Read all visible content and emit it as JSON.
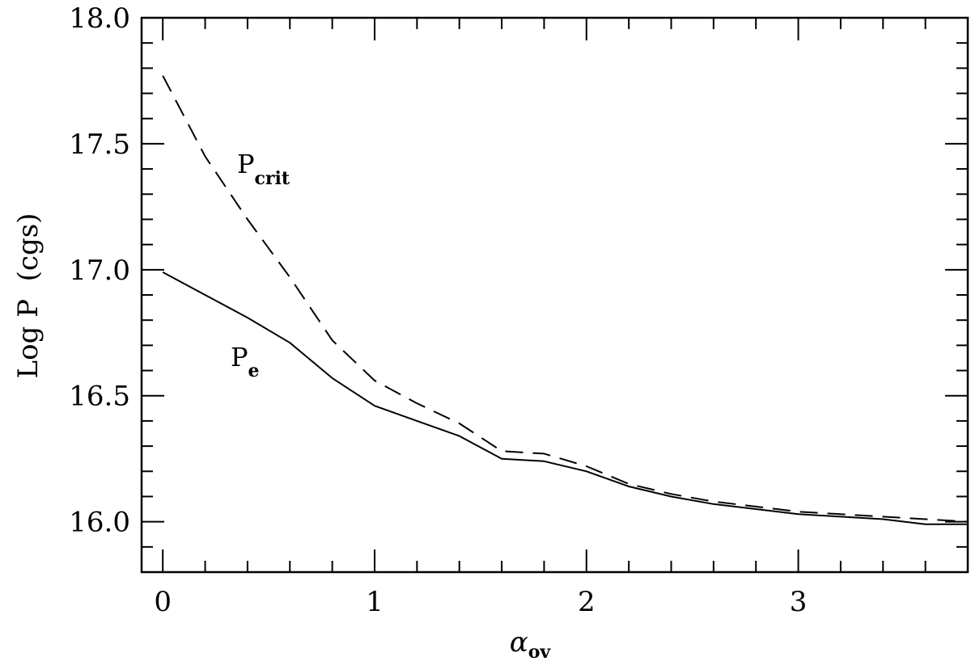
{
  "chart_data": {
    "type": "line",
    "xlabel": "α",
    "xlabel_sub": "ov",
    "ylabel": "Log P  (cgs)",
    "xlim": [
      -0.1,
      3.8
    ],
    "ylim": [
      15.8,
      18.0
    ],
    "xticks": [
      0,
      1,
      2,
      3
    ],
    "xtick_labels": [
      "0",
      "1",
      "2",
      "3"
    ],
    "yticks": [
      16.0,
      16.5,
      17.0,
      17.5,
      18.0
    ],
    "ytick_labels": [
      "16.0",
      "16.5",
      "17.0",
      "17.5",
      "18.0"
    ],
    "x_minor_step": 0.2,
    "y_minor_step": 0.1,
    "grid": false,
    "series": [
      {
        "name": "P",
        "name_sub": "crit",
        "style": "dashed",
        "x": [
          0,
          0.2,
          0.4,
          0.6,
          0.8,
          1.0,
          1.2,
          1.4,
          1.6,
          1.8,
          2.0,
          2.2,
          2.4,
          2.6,
          2.8,
          3.0,
          3.2,
          3.4,
          3.6,
          3.8
        ],
        "y": [
          17.77,
          17.45,
          17.2,
          16.97,
          16.72,
          16.56,
          16.47,
          16.39,
          16.28,
          16.27,
          16.22,
          16.15,
          16.11,
          16.08,
          16.06,
          16.04,
          16.03,
          16.02,
          16.01,
          16.0
        ]
      },
      {
        "name": "P",
        "name_sub": "e",
        "style": "solid",
        "x": [
          0,
          0.2,
          0.4,
          0.6,
          0.8,
          1.0,
          1.2,
          1.4,
          1.6,
          1.8,
          2.0,
          2.2,
          2.4,
          2.6,
          2.8,
          3.0,
          3.2,
          3.4,
          3.6,
          3.8
        ],
        "y": [
          16.99,
          16.9,
          16.81,
          16.71,
          16.57,
          16.46,
          16.4,
          16.34,
          16.25,
          16.24,
          16.2,
          16.14,
          16.1,
          16.07,
          16.05,
          16.03,
          16.02,
          16.01,
          15.99,
          15.99
        ]
      }
    ]
  }
}
